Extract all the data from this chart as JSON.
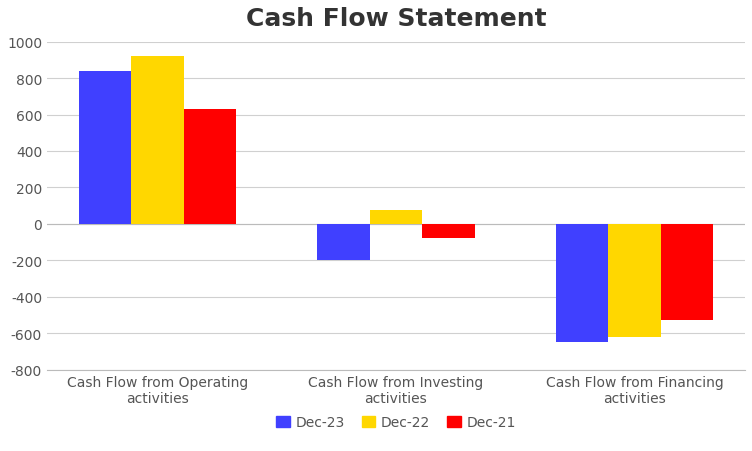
{
  "title": "Cash Flow Statement",
  "categories": [
    "Cash Flow from Operating\nactivities",
    "Cash Flow from Investing\nactivities",
    "Cash Flow from Financing\nactivities"
  ],
  "series": {
    "Dec-23": [
      840,
      -200,
      -650
    ],
    "Dec-22": [
      920,
      75,
      -620
    ],
    "Dec-21": [
      630,
      -80,
      -530
    ]
  },
  "colors": {
    "Dec-23": "#4040FF",
    "Dec-22": "#FFD700",
    "Dec-21": "#FF0000"
  },
  "ylim": [
    -800,
    1000
  ],
  "yticks": [
    -800,
    -600,
    -400,
    -200,
    0,
    200,
    400,
    600,
    800,
    1000
  ],
  "bar_width": 0.22,
  "background_color": "#FFFFFF",
  "plot_background": "#FFFFFF",
  "grid_color": "#D0D0D0",
  "title_fontsize": 18,
  "tick_fontsize": 10,
  "legend_fontsize": 10,
  "title_color": "#333333",
  "tick_color": "#555555"
}
